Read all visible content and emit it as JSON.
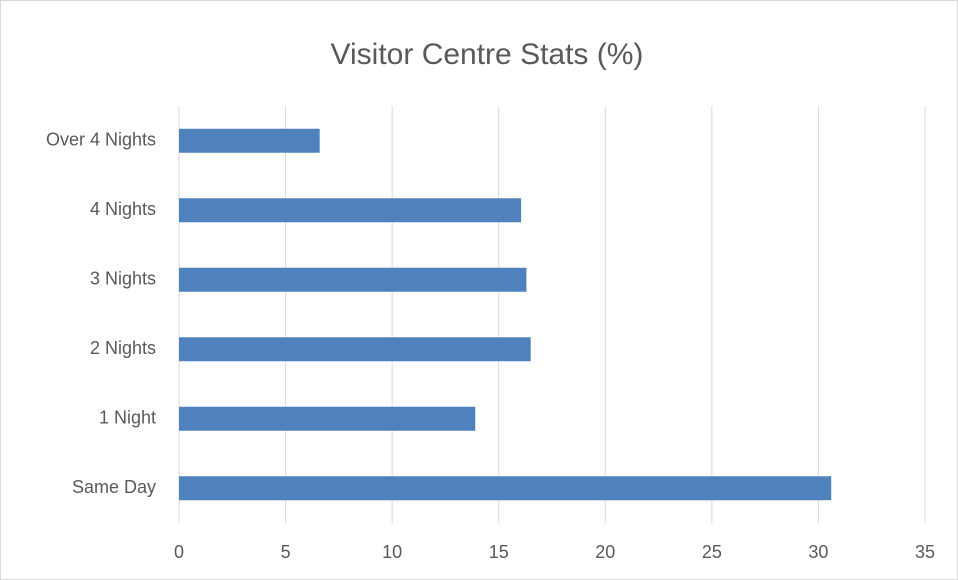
{
  "chart_data": {
    "type": "hbar",
    "title": "Visitor Centre Stats (%)",
    "categories": [
      "Same Day",
      "1 Night",
      "2 Nights",
      "3 Nights",
      "4 Nights",
      "Over 4 Nights"
    ],
    "values": [
      30.6,
      13.9,
      16.5,
      16.3,
      16.05,
      6.6
    ],
    "color": "#4f81bd",
    "xlim": [
      0,
      35
    ],
    "xticks": [
      0,
      5,
      10,
      15,
      20,
      25,
      30,
      35
    ],
    "grid": true
  }
}
